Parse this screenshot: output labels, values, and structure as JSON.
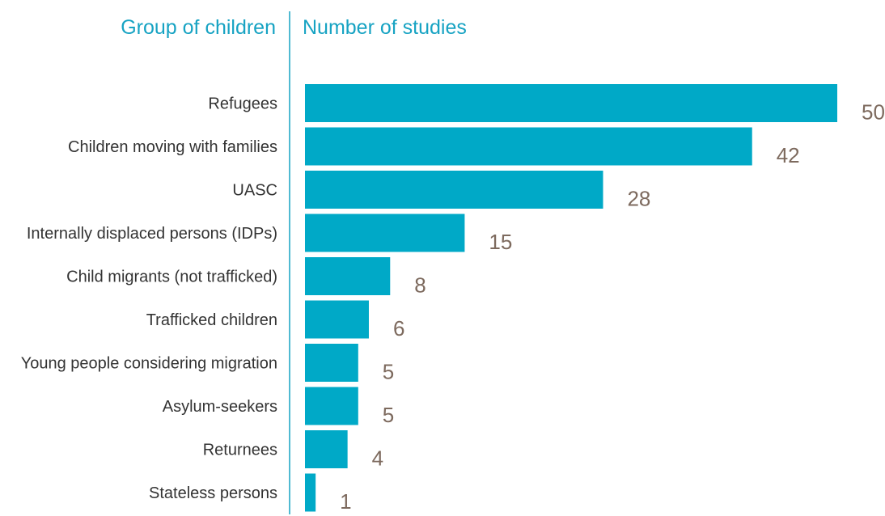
{
  "headers": {
    "left": "Group of children",
    "right": "Number of studies"
  },
  "colors": {
    "bar": "#00a9c7",
    "header": "#17a3c3",
    "divider": "#17a3c3",
    "label": "#333333",
    "value": "#7d6a5e"
  },
  "chart_data": {
    "type": "bar",
    "orientation": "horizontal",
    "title": "",
    "xlabel": "Number of studies",
    "ylabel": "Group of children",
    "xlim": [
      0,
      50
    ],
    "grid": false,
    "legend": "none",
    "categories": [
      "Refugees",
      "Children moving with families",
      "UASC",
      "Internally displaced persons (IDPs)",
      "Child migrants (not trafficked)",
      "Trafficked children",
      "Young people considering migration",
      "Asylum-seekers",
      "Returnees",
      "Stateless persons"
    ],
    "values": [
      50,
      42,
      28,
      15,
      8,
      6,
      5,
      5,
      4,
      1
    ],
    "data_labels": [
      "50",
      "42",
      "28",
      "15",
      "8",
      "6",
      "5",
      "5",
      "4",
      "1"
    ]
  }
}
